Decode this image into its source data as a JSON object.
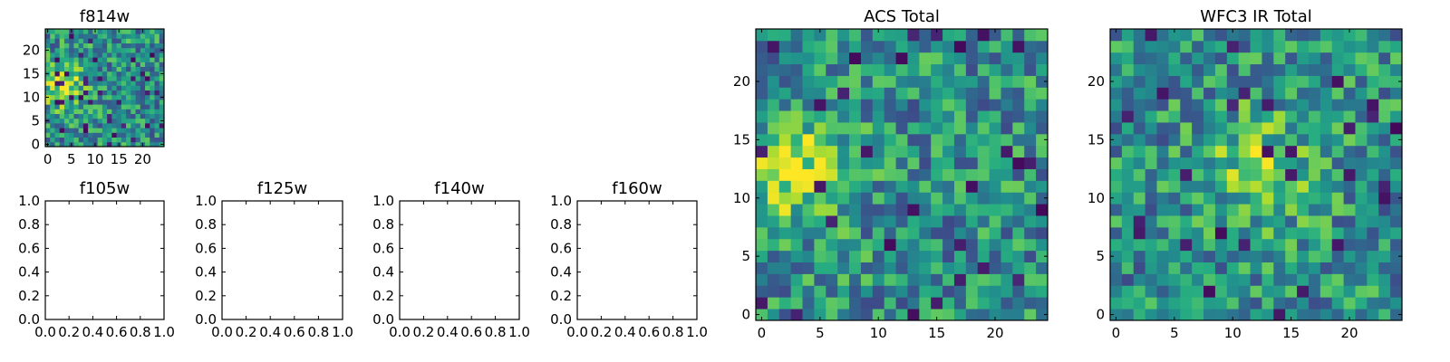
{
  "chart_data": [
    {
      "type": "heatmap",
      "title": "f814w",
      "grid": false,
      "xlim": [
        -0.5,
        24.5
      ],
      "ylim": [
        -0.5,
        24.5
      ],
      "x_ticks": [
        0,
        5,
        10,
        15,
        20
      ],
      "y_ticks": [
        0,
        5,
        10,
        15,
        20
      ],
      "colormap": "viridis",
      "rows": 25,
      "cols": 25,
      "matrix_seed": 814,
      "hotspot": {
        "x": 3.0,
        "y": 12.5,
        "strength": 0.9
      },
      "notes_values": "normalized pixel intensities 0-1, row 0 = bottom"
    },
    {
      "type": "heatmap",
      "title": "f105w",
      "empty": true,
      "xlim": [
        0.0,
        1.0
      ],
      "ylim": [
        0.0,
        1.0
      ],
      "x_ticks": [
        "0.0",
        "0.2",
        "0.4",
        "0.6",
        "0.8",
        "1.0"
      ],
      "y_ticks": [
        "0.0",
        "0.2",
        "0.4",
        "0.6",
        "0.8",
        "1.0"
      ]
    },
    {
      "type": "heatmap",
      "title": "f125w",
      "empty": true,
      "xlim": [
        0.0,
        1.0
      ],
      "ylim": [
        0.0,
        1.0
      ],
      "x_ticks": [
        "0.0",
        "0.2",
        "0.4",
        "0.6",
        "0.8",
        "1.0"
      ],
      "y_ticks": [
        "0.0",
        "0.2",
        "0.4",
        "0.6",
        "0.8",
        "1.0"
      ]
    },
    {
      "type": "heatmap",
      "title": "f140w",
      "empty": true,
      "xlim": [
        0.0,
        1.0
      ],
      "ylim": [
        0.0,
        1.0
      ],
      "x_ticks": [
        "0.0",
        "0.2",
        "0.4",
        "0.6",
        "0.8",
        "1.0"
      ],
      "y_ticks": [
        "0.0",
        "0.2",
        "0.4",
        "0.6",
        "0.8",
        "1.0"
      ]
    },
    {
      "type": "heatmap",
      "title": "f160w",
      "empty": true,
      "xlim": [
        0.0,
        1.0
      ],
      "ylim": [
        0.0,
        1.0
      ],
      "x_ticks": [
        "0.0",
        "0.2",
        "0.4",
        "0.6",
        "0.8",
        "1.0"
      ],
      "y_ticks": [
        "0.0",
        "0.2",
        "0.4",
        "0.6",
        "0.8",
        "1.0"
      ]
    },
    {
      "type": "heatmap",
      "title": "ACS Total",
      "grid": false,
      "xlim": [
        -0.5,
        24.5
      ],
      "ylim": [
        -0.5,
        24.5
      ],
      "x_ticks": [
        0,
        5,
        10,
        15,
        20
      ],
      "y_ticks": [
        0,
        5,
        10,
        15,
        20
      ],
      "colormap": "viridis",
      "rows": 25,
      "cols": 25,
      "matrix_seed": 1701,
      "hotspot": {
        "x": 3.0,
        "y": 12.5,
        "strength": 0.9
      }
    },
    {
      "type": "heatmap",
      "title": "WFC3 IR Total",
      "grid": false,
      "xlim": [
        -0.5,
        24.5
      ],
      "ylim": [
        -0.5,
        24.5
      ],
      "x_ticks": [
        0,
        5,
        10,
        15,
        20
      ],
      "y_ticks": [
        0,
        5,
        10,
        15,
        20
      ],
      "colormap": "viridis",
      "rows": 25,
      "cols": 25,
      "matrix_seed": 3021,
      "hotspot": {
        "x": 12.5,
        "y": 12.5,
        "strength": 0.7
      }
    }
  ]
}
